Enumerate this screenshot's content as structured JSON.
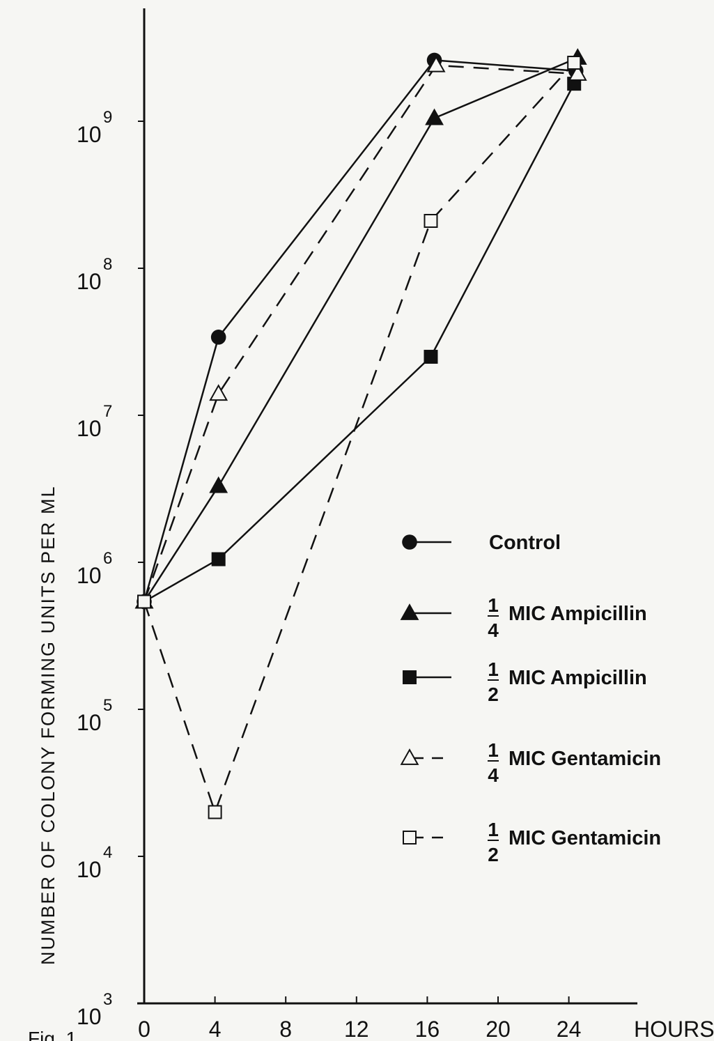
{
  "chart_data": {
    "type": "line",
    "title": "",
    "xlabel": "HOURS",
    "ylabel": "NUMBER OF COLONY FORMING UNITS PER ML",
    "x_ticks": [
      "0",
      "4",
      "8",
      "12",
      "16",
      "20",
      "24"
    ],
    "x_tick_values": [
      0,
      4,
      8,
      12,
      16,
      20,
      24
    ],
    "y_ticks": [
      {
        "base": "10",
        "exp": "3",
        "value": 1000
      },
      {
        "base": "10",
        "exp": "4",
        "value": 10000
      },
      {
        "base": "10",
        "exp": "5",
        "value": 100000
      },
      {
        "base": "10",
        "exp": "6",
        "value": 1000000
      },
      {
        "base": "10",
        "exp": "7",
        "value": 10000000
      },
      {
        "base": "10",
        "exp": "8",
        "value": 100000000
      },
      {
        "base": "10",
        "exp": "9",
        "value": 1000000000
      }
    ],
    "y_scale": "log",
    "xlim": [
      0,
      28
    ],
    "ylim": [
      1000,
      10000000000
    ],
    "grid": false,
    "legend_position": "right",
    "series": [
      {
        "name": "Control",
        "fraction": "",
        "marker": "filled-circle",
        "dash": "solid",
        "x": [
          0,
          4.2,
          16.4,
          24.4
        ],
        "y": [
          540000,
          34000000,
          2600000000,
          2200000000
        ]
      },
      {
        "name": "MIC Ampicillin",
        "fraction": "1/4",
        "marker": "filled-triangle",
        "dash": "solid",
        "x": [
          0,
          4.2,
          16.4,
          24.5
        ],
        "y": [
          540000,
          3300000,
          1050000000,
          2700000000
        ]
      },
      {
        "name": "MIC Ampicillin",
        "fraction": "1/2",
        "marker": "filled-square",
        "dash": "solid",
        "x": [
          0,
          4.2,
          16.2,
          24.3
        ],
        "y": [
          540000,
          1050000,
          25000000,
          1800000000
        ]
      },
      {
        "name": "MIC Gentamicin",
        "fraction": "1/4",
        "marker": "open-triangle",
        "dash": "dashed",
        "x": [
          0,
          4.2,
          16.5,
          24.5
        ],
        "y": [
          540000,
          14000000,
          2400000000,
          2100000000
        ]
      },
      {
        "name": "MIC Gentamicin",
        "fraction": "1/2",
        "marker": "open-square",
        "dash": "dashed",
        "x": [
          0,
          4.0,
          16.2,
          24.3
        ],
        "y": [
          540000,
          20000,
          210000000,
          2500000000
        ]
      }
    ]
  },
  "caption_fragment": "Fig. 1"
}
